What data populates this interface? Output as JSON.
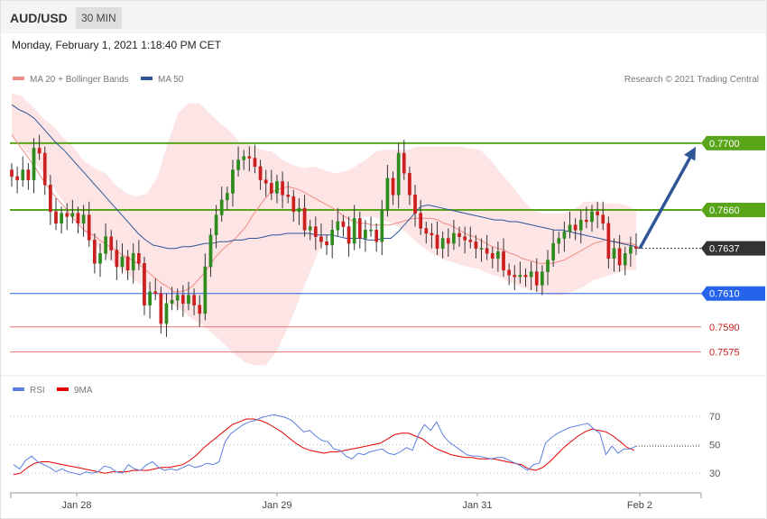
{
  "header": {
    "symbol": "AUD/USD",
    "interval": "30 MIN"
  },
  "timestamp": "Monday, February 1, 2021 1:18:40 PM CET",
  "legend": {
    "ma20": {
      "label": "MA 20 + Bollinger Bands",
      "color": "#f28b82"
    },
    "ma50": {
      "label": "MA 50",
      "color": "#2f5597"
    },
    "rsi": {
      "label": "RSI",
      "color": "#5b7fe0"
    },
    "rsi_ma": {
      "label": "9MA",
      "color": "#e60000"
    },
    "credit": "Research © 2021 Trading Central"
  },
  "colors": {
    "up": "#2e8b1e",
    "down": "#cc1f1f",
    "band": "#fde2e2",
    "resistance": "#58a51a",
    "support": "#2563eb",
    "support_ext": "#e57373",
    "arrow": "#2f5597",
    "current": "#333333"
  },
  "chart_data": [
    {
      "type": "candlestick",
      "title": "",
      "x_ticks": [
        "Jan 28",
        "Jan 29",
        "Jan 31",
        "Feb 2"
      ],
      "ylim": [
        0.7564,
        0.7742
      ],
      "levels": [
        {
          "value": 0.77,
          "label": "0.7700",
          "kind": "resistance"
        },
        {
          "value": 0.766,
          "label": "0.7660",
          "kind": "resistance"
        },
        {
          "value": 0.7637,
          "label": "0.7637",
          "kind": "current"
        },
        {
          "value": 0.761,
          "label": "0.7610",
          "kind": "support"
        },
        {
          "value": 0.759,
          "label": "0.7590",
          "kind": "support_ext"
        },
        {
          "value": 0.7575,
          "label": "0.7575",
          "kind": "support_ext"
        }
      ],
      "close": [
        0.768,
        0.7678,
        0.7684,
        0.7678,
        0.7697,
        0.7694,
        0.7675,
        0.7659,
        0.7652,
        0.7658,
        0.7656,
        0.7658,
        0.7652,
        0.7657,
        0.7642,
        0.7628,
        0.7634,
        0.7644,
        0.7636,
        0.7626,
        0.7632,
        0.7624,
        0.7634,
        0.7628,
        0.7603,
        0.7611,
        0.761,
        0.7592,
        0.7604,
        0.7606,
        0.7609,
        0.7604,
        0.7609,
        0.7603,
        0.7598,
        0.7626,
        0.7645,
        0.7657,
        0.7666,
        0.767,
        0.7684,
        0.769,
        0.7692,
        0.7691,
        0.7686,
        0.7678,
        0.7676,
        0.767,
        0.7677,
        0.7669,
        0.7668,
        0.7659,
        0.7661,
        0.7648,
        0.765,
        0.7644,
        0.7641,
        0.7639,
        0.7648,
        0.7653,
        0.765,
        0.764,
        0.7655,
        0.7643,
        0.7648,
        0.7648,
        0.7641,
        0.766,
        0.7679,
        0.7669,
        0.7694,
        0.7682,
        0.7669,
        0.7658,
        0.7649,
        0.7646,
        0.7645,
        0.7637,
        0.7643,
        0.764,
        0.7646,
        0.7644,
        0.7642,
        0.7641,
        0.7637,
        0.7637,
        0.7634,
        0.7631,
        0.7635,
        0.7624,
        0.7621,
        0.762,
        0.7621,
        0.762,
        0.7623,
        0.7615,
        0.7623,
        0.763,
        0.764,
        0.7643,
        0.7647,
        0.7651,
        0.7648,
        0.7654,
        0.7653,
        0.7659,
        0.7657,
        0.7652,
        0.7631,
        0.7637,
        0.7627,
        0.7634,
        0.7638,
        0.7637
      ],
      "ma20": [
        0.7705,
        0.77,
        0.7695,
        0.769,
        0.7685,
        0.7679,
        0.7674,
        0.7669,
        0.7665,
        0.7661,
        0.7656,
        0.7652,
        0.7648,
        0.7646,
        0.7644,
        0.7641,
        0.7639,
        0.7637,
        0.7634,
        0.7632,
        0.763,
        0.7628,
        0.7625,
        0.7622,
        0.7619,
        0.7616,
        0.7614,
        0.7611,
        0.7611,
        0.7612,
        0.7614,
        0.7618,
        0.7622,
        0.7627,
        0.7632,
        0.7636,
        0.7639,
        0.7642,
        0.7646,
        0.765,
        0.7656,
        0.7661,
        0.7666,
        0.767,
        0.7672,
        0.7673,
        0.7674,
        0.7673,
        0.7672,
        0.767,
        0.7668,
        0.7666,
        0.7664,
        0.7662,
        0.766,
        0.7657,
        0.7655,
        0.7653,
        0.7652,
        0.7652,
        0.7651,
        0.7651,
        0.7651,
        0.7651,
        0.7652,
        0.7653,
        0.7654,
        0.7655,
        0.7655,
        0.7655,
        0.7655,
        0.7654,
        0.7652,
        0.7651,
        0.7649,
        0.7647,
        0.7645,
        0.7644,
        0.7642,
        0.764,
        0.7638,
        0.7637,
        0.7636,
        0.7634,
        0.7633,
        0.7631,
        0.763,
        0.7629,
        0.7628,
        0.7628,
        0.7628,
        0.7629,
        0.763,
        0.7632,
        0.7634,
        0.7636,
        0.7638,
        0.764,
        0.7641,
        0.7642,
        0.7641,
        0.7641,
        0.764,
        0.764,
        0.7639
      ],
      "ma50": [
        0.7723,
        0.772,
        0.7718,
        0.7715,
        0.771,
        0.7705,
        0.77,
        0.7696,
        0.7691,
        0.7686,
        0.7681,
        0.7676,
        0.7671,
        0.7666,
        0.7661,
        0.7656,
        0.7651,
        0.7646,
        0.7642,
        0.7639,
        0.7638,
        0.7637,
        0.7637,
        0.7638,
        0.7638,
        0.7639,
        0.764,
        0.764,
        0.7641,
        0.7641,
        0.7642,
        0.7642,
        0.7643,
        0.7643,
        0.7644,
        0.7645,
        0.7645,
        0.7646,
        0.7646,
        0.7646,
        0.7646,
        0.7645,
        0.7645,
        0.7645,
        0.7644,
        0.7643,
        0.7643,
        0.7643,
        0.7642,
        0.7642,
        0.7643,
        0.7643,
        0.7647,
        0.7652,
        0.7657,
        0.7662,
        0.7663,
        0.7662,
        0.7661,
        0.766,
        0.7659,
        0.7658,
        0.7657,
        0.7656,
        0.7655,
        0.7654,
        0.7654,
        0.7653,
        0.7653,
        0.7652,
        0.7651,
        0.765,
        0.7649,
        0.7648,
        0.7648,
        0.7647,
        0.7646,
        0.7645,
        0.7644,
        0.7643,
        0.7642,
        0.7641,
        0.764,
        0.7639,
        0.7638
      ],
      "bollinger_upper": [
        0.773,
        0.7728,
        0.7722,
        0.7715,
        0.771,
        0.7703,
        0.7697,
        0.7689,
        0.7685,
        0.7682,
        0.7675,
        0.767,
        0.7668,
        0.767,
        0.768,
        0.77,
        0.7718,
        0.7724,
        0.7724,
        0.7718,
        0.7712,
        0.7707,
        0.77,
        0.7699,
        0.7696,
        0.7695,
        0.769,
        0.7687,
        0.7685,
        0.7686,
        0.7684,
        0.7682,
        0.7683,
        0.7686,
        0.769,
        0.7695,
        0.7696,
        0.7696,
        0.7696,
        0.7698,
        0.7698,
        0.7698,
        0.7698,
        0.7698,
        0.7697,
        0.7696,
        0.769,
        0.7682,
        0.7675,
        0.7667,
        0.766,
        0.7658,
        0.7658,
        0.7658,
        0.766,
        0.7665,
        0.7665,
        0.7664,
        0.7664,
        0.7663,
        0.766
      ],
      "bollinger_lower": [
        0.7705,
        0.7698,
        0.769,
        0.7682,
        0.7673,
        0.7664,
        0.7655,
        0.7646,
        0.7638,
        0.7632,
        0.7626,
        0.7621,
        0.7616,
        0.7612,
        0.7608,
        0.7604,
        0.76,
        0.7595,
        0.7591,
        0.7586,
        0.758,
        0.7574,
        0.7569,
        0.7567,
        0.7567,
        0.7575,
        0.7588,
        0.7604,
        0.762,
        0.7635,
        0.7646,
        0.7652,
        0.7655,
        0.7656,
        0.7656,
        0.7654,
        0.7652,
        0.7648,
        0.7642,
        0.7637,
        0.7633,
        0.763,
        0.7628,
        0.7626,
        0.7625,
        0.7622,
        0.762,
        0.7617,
        0.7614,
        0.7612,
        0.761,
        0.7609,
        0.7609,
        0.7611,
        0.7614,
        0.7618,
        0.762,
        0.7622,
        0.7624,
        0.7624
      ],
      "forecast_arrow": {
        "from": 0.7637,
        "to": 0.77
      }
    },
    {
      "type": "line",
      "title": "",
      "y_ticks": [
        30,
        50,
        70
      ],
      "ylim": [
        20,
        80
      ],
      "series": [
        {
          "name": "RSI",
          "values": [
            36,
            33,
            39,
            42,
            38,
            36,
            34,
            31,
            33,
            31,
            30,
            29,
            31,
            30,
            31,
            35,
            34,
            31,
            30,
            36,
            33,
            32,
            36,
            38,
            34,
            32,
            33,
            32,
            34,
            36,
            34,
            35,
            37,
            36,
            38,
            52,
            58,
            61,
            64,
            66,
            67,
            69,
            70,
            71,
            70,
            69,
            67,
            63,
            59,
            60,
            56,
            53,
            52,
            47,
            46,
            42,
            40,
            44,
            43,
            45,
            46,
            47,
            44,
            43,
            45,
            48,
            46,
            57,
            64,
            60,
            66,
            57,
            52,
            49,
            46,
            43,
            42,
            42,
            41,
            40,
            41,
            41,
            39,
            37,
            35,
            32,
            36,
            37,
            51,
            55,
            58,
            60,
            62,
            63,
            64,
            65,
            61,
            58,
            43,
            49,
            44,
            47,
            47,
            49
          ]
        },
        {
          "name": "9MA",
          "values": [
            29,
            30,
            34,
            37,
            38,
            38,
            37,
            36,
            35,
            34,
            33,
            32,
            31,
            30,
            31,
            31,
            31,
            32,
            32,
            32,
            33,
            34,
            34,
            35,
            36,
            39,
            43,
            48,
            52,
            56,
            60,
            64,
            66,
            68,
            68,
            67,
            65,
            62,
            59,
            55,
            51,
            48,
            46,
            45,
            44,
            45,
            45,
            46,
            47,
            48,
            49,
            50,
            51,
            54,
            57,
            58,
            58,
            56,
            54,
            50,
            47,
            45,
            43,
            42,
            41,
            41,
            40,
            40,
            40,
            39,
            38,
            37,
            36,
            33,
            32,
            34,
            38,
            43,
            48,
            52,
            56,
            59,
            61,
            60,
            59,
            56,
            52,
            48,
            46
          ]
        }
      ]
    }
  ]
}
